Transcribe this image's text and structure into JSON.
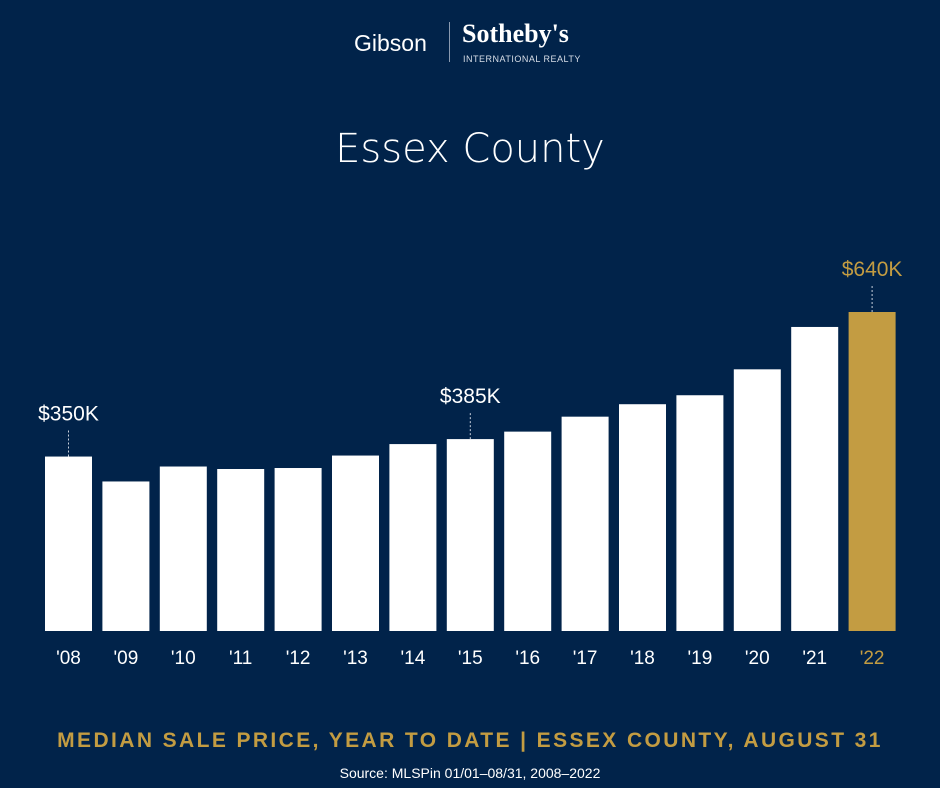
{
  "logo": {
    "left": "Gibson",
    "right": "Sotheby's",
    "sub": "INTERNATIONAL REALTY"
  },
  "chart_data": {
    "type": "bar",
    "title": "Essex County",
    "categories": [
      "'08",
      "'09",
      "'10",
      "'11",
      "'12",
      "'13",
      "'14",
      "'15",
      "'16",
      "'17",
      "'18",
      "'19",
      "'20",
      "'21",
      "'22"
    ],
    "values": [
      350,
      300,
      330,
      325,
      327,
      352,
      375,
      385,
      400,
      430,
      455,
      473,
      525,
      610,
      640
    ],
    "unit": "K USD",
    "ylim": [
      0,
      700
    ],
    "grid": false,
    "data_labels": [
      {
        "index": 0,
        "text": "$350K"
      },
      {
        "index": 7,
        "text": "$385K"
      },
      {
        "index": 14,
        "text": "$640K"
      }
    ],
    "colors": {
      "bar": "#ffffff",
      "highlight": "#c39c42",
      "background": "#01234a"
    },
    "highlight_index": 14
  },
  "caption": "MEDIAN SALE PRICE, YEAR TO DATE | ESSEX COUNTY, AUGUST 31",
  "source": "Source: MLSPin 01/01–08/31, 2008–2022"
}
